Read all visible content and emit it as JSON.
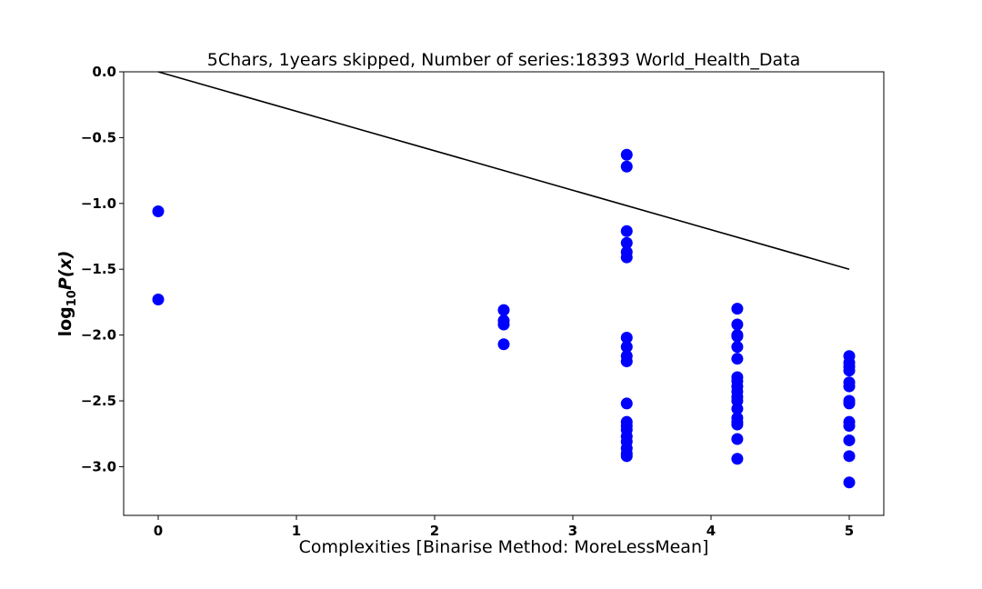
{
  "chart_data": {
    "type": "scatter",
    "title": "5Chars, 1years skipped, Number of series:18393 World_Health_Data",
    "xlabel": "Complexities [Binarise Method: MoreLessMean]",
    "ylabel": "log10P(x)",
    "ylabel_parts": {
      "base": "log",
      "sub": "10",
      "rest": "P(x)"
    },
    "xlim": [
      -0.25,
      5.25
    ],
    "ylim": [
      -3.37,
      0.0
    ],
    "x_ticks": [
      0,
      1,
      2,
      3,
      4,
      5
    ],
    "x_tick_labels": [
      "0",
      "1",
      "2",
      "3",
      "4",
      "5"
    ],
    "y_ticks": [
      0.0,
      -0.5,
      -1.0,
      -1.5,
      -2.0,
      -2.5,
      -3.0
    ],
    "y_tick_labels": [
      "0.0",
      "−0.5",
      "−1.0",
      "−1.5",
      "−2.0",
      "−2.5",
      "−3.0"
    ],
    "grid": false,
    "colors": {
      "points": "#0000ff",
      "line": "#000000"
    },
    "line": {
      "x": [
        0,
        5
      ],
      "y": [
        0.0,
        -1.5
      ]
    },
    "points": [
      [
        0,
        -1.06
      ],
      [
        0,
        -1.73
      ],
      [
        2.5,
        -1.81
      ],
      [
        2.5,
        -1.89
      ],
      [
        2.5,
        -1.92
      ],
      [
        2.5,
        -2.07
      ],
      [
        3.39,
        -0.63
      ],
      [
        3.39,
        -0.72
      ],
      [
        3.39,
        -1.21
      ],
      [
        3.39,
        -1.3
      ],
      [
        3.39,
        -1.37
      ],
      [
        3.39,
        -1.41
      ],
      [
        3.39,
        -2.02
      ],
      [
        3.39,
        -2.09
      ],
      [
        3.39,
        -2.16
      ],
      [
        3.39,
        -2.2
      ],
      [
        3.39,
        -2.52
      ],
      [
        3.39,
        -2.66
      ],
      [
        3.39,
        -2.69
      ],
      [
        3.39,
        -2.72
      ],
      [
        3.39,
        -2.77
      ],
      [
        3.39,
        -2.81
      ],
      [
        3.39,
        -2.86
      ],
      [
        3.39,
        -2.9
      ],
      [
        3.39,
        -2.92
      ],
      [
        4.19,
        -1.8
      ],
      [
        4.19,
        -1.92
      ],
      [
        4.19,
        -2.0
      ],
      [
        4.19,
        -2.01
      ],
      [
        4.19,
        -2.09
      ],
      [
        4.19,
        -2.18
      ],
      [
        4.19,
        -2.32
      ],
      [
        4.19,
        -2.35
      ],
      [
        4.19,
        -2.39
      ],
      [
        4.19,
        -2.43
      ],
      [
        4.19,
        -2.47
      ],
      [
        4.19,
        -2.5
      ],
      [
        4.19,
        -2.56
      ],
      [
        4.19,
        -2.63
      ],
      [
        4.19,
        -2.66
      ],
      [
        4.19,
        -2.68
      ],
      [
        4.19,
        -2.79
      ],
      [
        4.19,
        -2.94
      ],
      [
        5.0,
        -2.16
      ],
      [
        5.0,
        -2.21
      ],
      [
        5.0,
        -2.24
      ],
      [
        5.0,
        -2.27
      ],
      [
        5.0,
        -2.36
      ],
      [
        5.0,
        -2.39
      ],
      [
        5.0,
        -2.5
      ],
      [
        5.0,
        -2.52
      ],
      [
        5.0,
        -2.66
      ],
      [
        5.0,
        -2.69
      ],
      [
        5.0,
        -2.8
      ],
      [
        5.0,
        -2.92
      ],
      [
        5.0,
        -3.12
      ]
    ]
  }
}
